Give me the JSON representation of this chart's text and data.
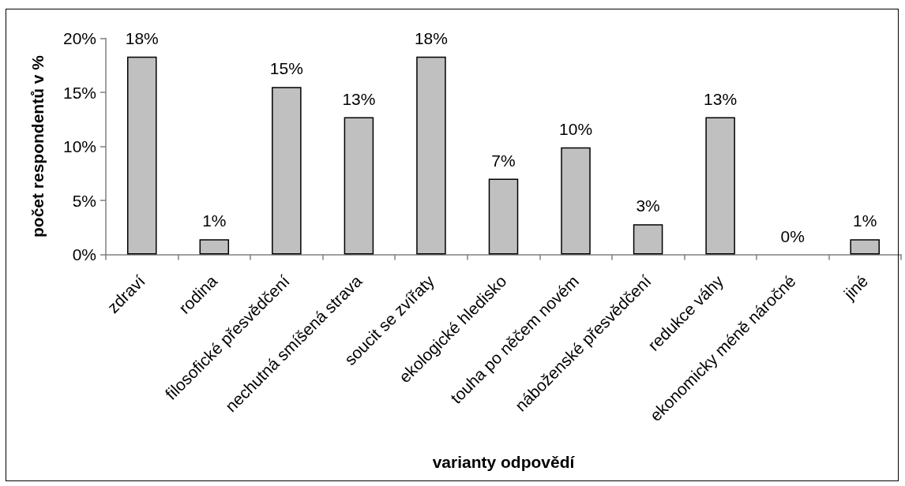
{
  "chart_data": {
    "type": "bar",
    "xlabel": "varianty odpovědí",
    "ylabel": "počet respondentů v %",
    "categories": [
      "zdraví",
      "rodina",
      "filosofické přesvědčení",
      "nechutná smíšená strava",
      "soucit se zvířaty",
      "ekologické hledisko",
      "touha po něčem novém",
      "náboženské přesvědčení",
      "redukce váhy",
      "ekonomicky méně náročné",
      "jiné"
    ],
    "values": [
      18.3,
      1.4,
      15.5,
      12.7,
      18.3,
      7.0,
      9.9,
      2.8,
      12.7,
      0,
      1.4
    ],
    "value_labels": [
      "18%",
      "1%",
      "15%",
      "13%",
      "18%",
      "7%",
      "10%",
      "3%",
      "13%",
      "0%",
      "1%"
    ],
    "color": "#c0c0c0",
    "ylim": [
      0,
      20
    ],
    "yticks": [
      {
        "value": 0,
        "label": "0%"
      },
      {
        "value": 5,
        "label": "5%"
      },
      {
        "value": 10,
        "label": "10%"
      },
      {
        "value": 15,
        "label": "15%"
      },
      {
        "value": 20,
        "label": "20%"
      }
    ],
    "grid": false
  }
}
